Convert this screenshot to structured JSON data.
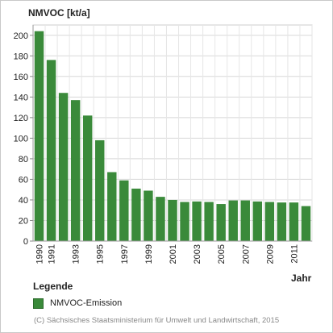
{
  "chart_data": {
    "type": "bar",
    "ylabel": "NMVOC [kt/a]",
    "xlabel": "Jahr",
    "x": [
      1990,
      1991,
      1992,
      1993,
      1994,
      1995,
      1996,
      1997,
      1998,
      1999,
      2000,
      2001,
      2002,
      2003,
      2004,
      2005,
      2006,
      2007,
      2008,
      2009,
      2010,
      2011,
      2012
    ],
    "xtick_labels": [
      "1990",
      "1991",
      "1993",
      "1995",
      "1997",
      "1999",
      "2001",
      "2003",
      "2005",
      "2007",
      "2009",
      "2011"
    ],
    "series": [
      {
        "name": "NMVOC-Emission",
        "color": "#3a8a3a",
        "values": [
          204,
          176,
          144,
          137,
          122,
          98,
          67,
          59,
          51,
          49,
          43,
          40,
          38,
          38.5,
          38,
          36,
          39.5,
          39.5,
          38.5,
          38,
          37.5,
          37.5,
          34
        ]
      }
    ],
    "ylim": [
      0,
      210
    ],
    "yticks": [
      0,
      20,
      40,
      60,
      80,
      100,
      120,
      140,
      160,
      180,
      200
    ],
    "grid": true,
    "legend": {
      "title": "Legende",
      "position": "bottom-left"
    }
  },
  "footer": "(C) Sächsisches Staatsministerium für Umwelt und Landwirtschaft, 2015"
}
